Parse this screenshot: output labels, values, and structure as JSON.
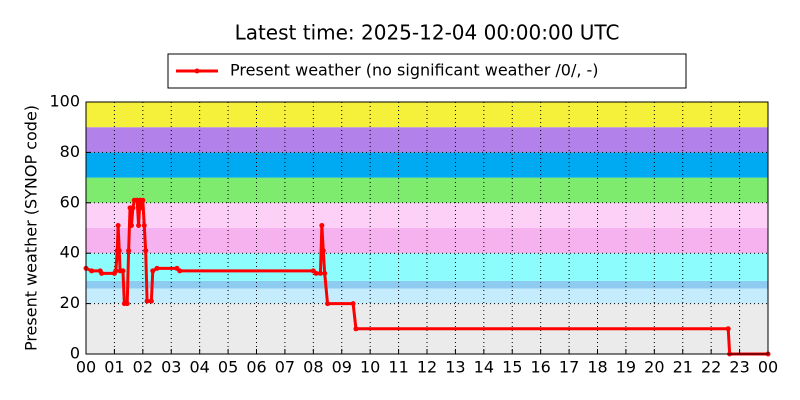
{
  "chart_data": {
    "type": "line",
    "title": "Latest time: 2025-12-04 00:00:00 UTC",
    "y_label": "Present weather (SYNOP code)",
    "xlim": [
      0,
      24
    ],
    "xticks": [
      {
        "value": 0,
        "label": "00"
      },
      {
        "value": 1,
        "label": "01"
      },
      {
        "value": 2,
        "label": "02"
      },
      {
        "value": 3,
        "label": "03"
      },
      {
        "value": 4,
        "label": "04"
      },
      {
        "value": 5,
        "label": "05"
      },
      {
        "value": 6,
        "label": "06"
      },
      {
        "value": 7,
        "label": "07"
      },
      {
        "value": 8,
        "label": "08"
      },
      {
        "value": 9,
        "label": "09"
      },
      {
        "value": 10,
        "label": "10"
      },
      {
        "value": 11,
        "label": "11"
      },
      {
        "value": 12,
        "label": "12"
      },
      {
        "value": 13,
        "label": "13"
      },
      {
        "value": 14,
        "label": "14"
      },
      {
        "value": 15,
        "label": "15"
      },
      {
        "value": 16,
        "label": "16"
      },
      {
        "value": 17,
        "label": "17"
      },
      {
        "value": 18,
        "label": "18"
      },
      {
        "value": 19,
        "label": "19"
      },
      {
        "value": 20,
        "label": "20"
      },
      {
        "value": 21,
        "label": "21"
      },
      {
        "value": 22,
        "label": "22"
      },
      {
        "value": 23,
        "label": "23"
      },
      {
        "value": 24,
        "label": "00"
      }
    ],
    "ylim": [
      0,
      100
    ],
    "yticks": [
      0,
      20,
      40,
      60,
      80,
      100
    ],
    "grid": true,
    "legend": "upper center",
    "bands": [
      {
        "from": 0,
        "to": 20,
        "color": "#ebebeb"
      },
      {
        "from": 20,
        "to": 26,
        "color": "#c4ecfc"
      },
      {
        "from": 26,
        "to": 29,
        "color": "#8ecbf0"
      },
      {
        "from": 29,
        "to": 40,
        "color": "#8cfcfc"
      },
      {
        "from": 40,
        "to": 50,
        "color": "#f5b2ee"
      },
      {
        "from": 50,
        "to": 60,
        "color": "#fdd0f8"
      },
      {
        "from": 60,
        "to": 70,
        "color": "#7eea6e"
      },
      {
        "from": 70,
        "to": 80,
        "color": "#00aaf2"
      },
      {
        "from": 80,
        "to": 90,
        "color": "#b282ea"
      },
      {
        "from": 90,
        "to": 100,
        "color": "#f5f03a"
      }
    ],
    "series": [
      {
        "name": "Present weather (no significant weather /0/, -)",
        "color": "#ff0000",
        "x": [
          0,
          0.2,
          0.5,
          0.55,
          1.0,
          1.05,
          1.1,
          1.13,
          1.17,
          1.2,
          1.3,
          1.35,
          1.45,
          1.5,
          1.55,
          1.6,
          1.65,
          1.7,
          1.8,
          1.85,
          1.9,
          1.95,
          2.0,
          2.05,
          2.1,
          2.15,
          2.3,
          2.35,
          2.5,
          3.2,
          3.3,
          8.0,
          8.1,
          8.25,
          8.3,
          8.35,
          8.4,
          8.5,
          9.4,
          9.5,
          22.6,
          22.65,
          24
        ],
        "values": [
          34,
          33,
          33,
          32,
          32,
          33,
          41,
          51,
          41,
          33,
          33,
          20,
          20,
          41,
          58,
          51,
          58,
          61,
          61,
          51,
          61,
          58,
          61,
          51,
          41,
          21,
          21,
          33,
          34,
          34,
          33,
          33,
          32,
          32,
          51,
          41,
          32,
          20,
          20,
          10,
          10,
          0,
          0
        ]
      }
    ]
  }
}
